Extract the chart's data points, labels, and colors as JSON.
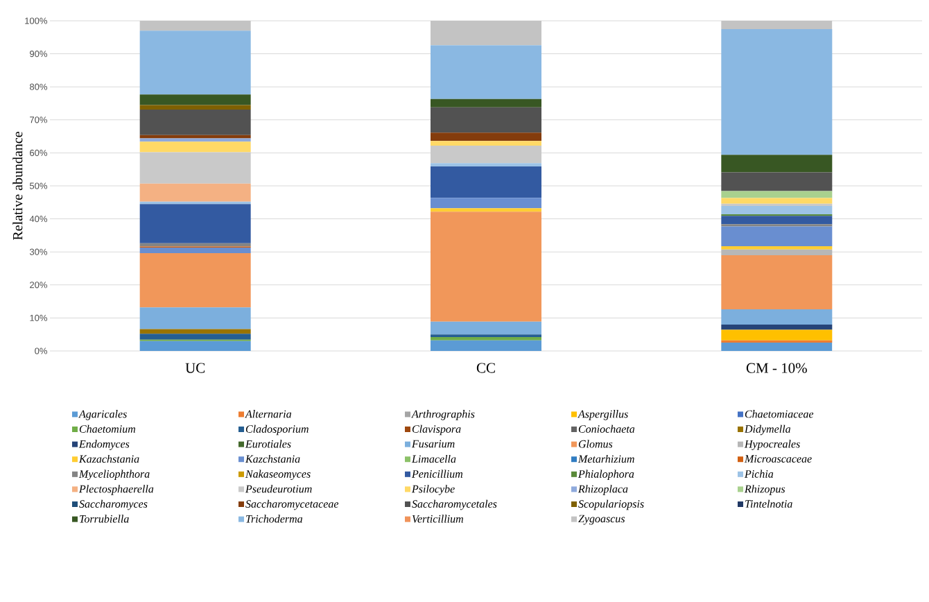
{
  "chart_data": {
    "type": "bar",
    "stacked": true,
    "ylabel": "Relative abundance",
    "categories": [
      "UC",
      "CC",
      "CM - 10%"
    ],
    "ylim": [
      0,
      100
    ],
    "yticks": [
      {
        "value": 0,
        "label": "0%"
      },
      {
        "value": 10,
        "label": "10%"
      },
      {
        "value": 20,
        "label": "20%"
      },
      {
        "value": 30,
        "label": "30%"
      },
      {
        "value": 40,
        "label": "40%"
      },
      {
        "value": 50,
        "label": "50%"
      },
      {
        "value": 60,
        "label": "60%"
      },
      {
        "value": 70,
        "label": "70%"
      },
      {
        "value": 80,
        "label": "80%"
      },
      {
        "value": 90,
        "label": "90%"
      },
      {
        "value": 100,
        "label": "100%"
      }
    ],
    "grid": "y",
    "legend": "bottom",
    "series": [
      {
        "name": "Agaricales",
        "color": "#5b9bd5",
        "values": [
          3.0,
          3.2,
          2.5
        ]
      },
      {
        "name": "Alternaria",
        "color": "#ed7d31",
        "values": [
          0,
          0,
          0.7
        ]
      },
      {
        "name": "Arthrographis",
        "color": "#a5a5a5",
        "values": [
          0,
          0,
          0
        ]
      },
      {
        "name": "Aspergillus",
        "color": "#ffc000",
        "values": [
          0,
          0,
          3.2
        ]
      },
      {
        "name": "Chaetomiaceae",
        "color": "#4472c4",
        "values": [
          0,
          0,
          0
        ]
      },
      {
        "name": "Chaetomium",
        "color": "#70ad47",
        "values": [
          0.4,
          1.0,
          0
        ]
      },
      {
        "name": "Cladosporium",
        "color": "#255e91",
        "values": [
          1.8,
          0.8,
          0
        ]
      },
      {
        "name": "Clavispora",
        "color": "#9e480e",
        "values": [
          0,
          0,
          0
        ]
      },
      {
        "name": "Coniochaeta",
        "color": "#636363",
        "values": [
          0,
          0,
          0
        ]
      },
      {
        "name": "Didymella",
        "color": "#997300",
        "values": [
          1.4,
          0,
          0
        ]
      },
      {
        "name": "Endomyces",
        "color": "#264478",
        "values": [
          0,
          0,
          1.6
        ]
      },
      {
        "name": "Eurotiales",
        "color": "#43682b",
        "values": [
          0,
          0,
          0
        ]
      },
      {
        "name": "Fusarium",
        "color": "#7cafdd",
        "values": [
          6.6,
          3.9,
          4.6
        ]
      },
      {
        "name": "Glomus",
        "color": "#f1975a",
        "values": [
          16.4,
          33.3,
          16.4
        ]
      },
      {
        "name": "Hypocreales",
        "color": "#b7b7b7",
        "values": [
          0,
          0,
          1.7
        ]
      },
      {
        "name": "Kazachstania",
        "color": "#ffcd33",
        "values": [
          0,
          1.0,
          1.0
        ]
      },
      {
        "name": "Kazchstania",
        "color": "#698ed0",
        "values": [
          1.7,
          3.2,
          6.0
        ]
      },
      {
        "name": "Limacella",
        "color": "#8cc168",
        "values": [
          0,
          0,
          0
        ]
      },
      {
        "name": "Metarhizium",
        "color": "#327dc2",
        "values": [
          0,
          0,
          0
        ]
      },
      {
        "name": "Microascaceae",
        "color": "#d26012",
        "values": [
          0.3,
          0,
          0
        ]
      },
      {
        "name": "Myceliophthora",
        "color": "#848484",
        "values": [
          1.0,
          0,
          0.7
        ]
      },
      {
        "name": "Nakaseomyces",
        "color": "#cc9a00",
        "values": [
          0,
          0,
          0
        ]
      },
      {
        "name": "Penicillium",
        "color": "#335aa1",
        "values": [
          11.9,
          9.5,
          2.5
        ]
      },
      {
        "name": "Phialophora",
        "color": "#5a8a39",
        "values": [
          0,
          0,
          0.5
        ]
      },
      {
        "name": "Pichia",
        "color": "#9dc3e6",
        "values": [
          0.7,
          1.0,
          2.5
        ]
      },
      {
        "name": "Plectosphaerella",
        "color": "#f4b183",
        "values": [
          5.5,
          0,
          0
        ]
      },
      {
        "name": "Pseudeurotium",
        "color": "#c9c9c9",
        "values": [
          9.5,
          5.3,
          0.7
        ]
      },
      {
        "name": "Psilocybe",
        "color": "#ffd966",
        "values": [
          3.2,
          1.4,
          1.7
        ]
      },
      {
        "name": "Rhizoplaca",
        "color": "#8faadc",
        "values": [
          1.0,
          0,
          0
        ]
      },
      {
        "name": "Rhizopus",
        "color": "#a9d18e",
        "values": [
          0,
          0,
          2.1
        ]
      },
      {
        "name": "Saccharomyces",
        "color": "#1f4e79",
        "values": [
          0,
          0,
          0
        ]
      },
      {
        "name": "Saccharomycetaceae",
        "color": "#843c0c",
        "values": [
          1.0,
          2.5,
          0
        ]
      },
      {
        "name": "Saccharomycetales",
        "color": "#525252",
        "values": [
          7.7,
          7.7,
          5.7
        ]
      },
      {
        "name": "Scopulariopsis",
        "color": "#7f6000",
        "values": [
          1.4,
          0,
          0
        ]
      },
      {
        "name": "Tintelnotia",
        "color": "#203864",
        "values": [
          0,
          0,
          0
        ]
      },
      {
        "name": "Torrubiella",
        "color": "#385723",
        "values": [
          3.2,
          2.5,
          5.3
        ]
      },
      {
        "name": "Trichoderma",
        "color": "#8ab8e2",
        "values": [
          19.3,
          16.3,
          38.1
        ]
      },
      {
        "name": "Verticillium",
        "color": "#f0935a",
        "values": [
          0,
          0,
          0
        ]
      },
      {
        "name": "Zygoascus",
        "color": "#c3c3c3",
        "values": [
          3.0,
          7.4,
          2.5
        ]
      }
    ]
  }
}
